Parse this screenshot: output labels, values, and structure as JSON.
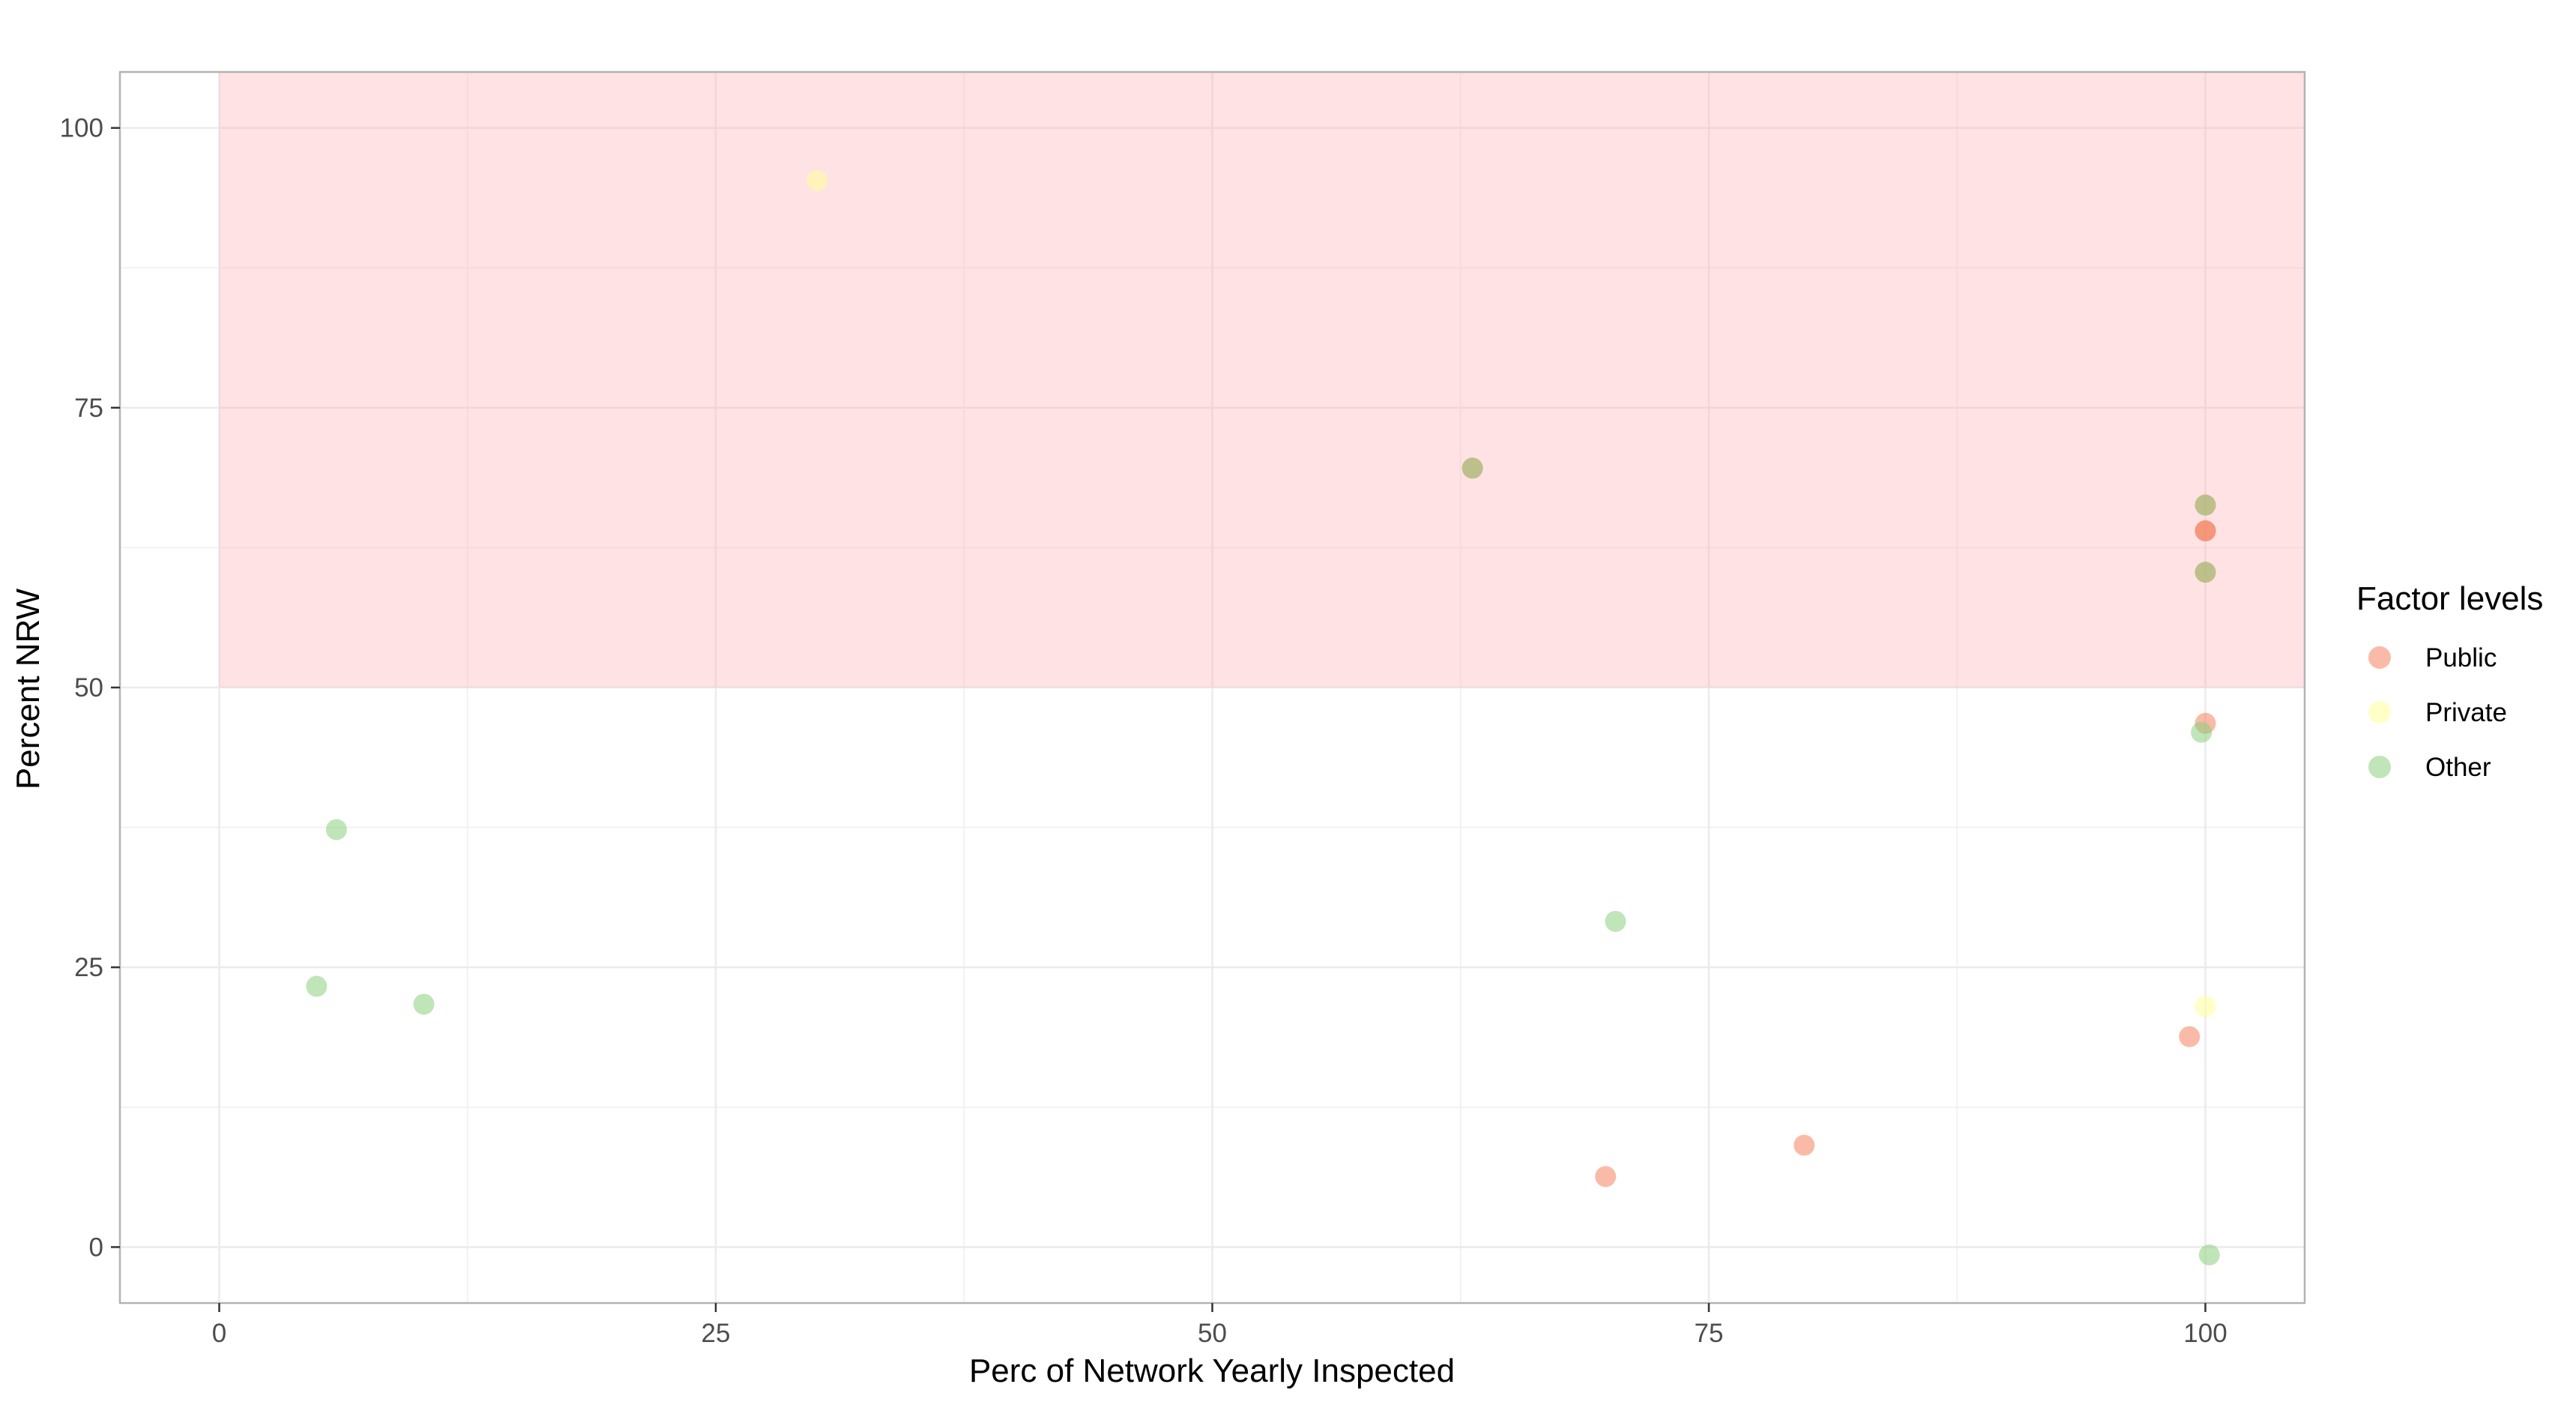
{
  "chart_data": {
    "type": "scatter",
    "title": "",
    "xlabel": "Perc of Network Yearly Inspected",
    "ylabel": "Percent NRW",
    "xlim": [
      -5,
      105
    ],
    "ylim": [
      -5,
      105
    ],
    "xticks": [
      0,
      25,
      50,
      75,
      100
    ],
    "yticks": [
      0,
      25,
      50,
      75,
      100
    ],
    "grid": true,
    "legend_position": "right",
    "legend_title": "Factor levels",
    "shaded_region": {
      "x": [
        0,
        105
      ],
      "y": [
        50,
        105
      ],
      "color": "#ffb3b8"
    },
    "series": [
      {
        "name": "Public",
        "color": "#f4845f",
        "points": [
          [
            100,
            64
          ],
          [
            100,
            64
          ],
          [
            100,
            46.8
          ],
          [
            99.2,
            18.8
          ],
          [
            79.8,
            9.1
          ],
          [
            69.8,
            6.3
          ],
          [
            63.1,
            69.6
          ],
          [
            100,
            66.3
          ],
          [
            100,
            60.3
          ]
        ]
      },
      {
        "name": "Private",
        "color": "#ffff99",
        "points": [
          [
            30.1,
            95.3
          ],
          [
            100,
            21.5
          ]
        ]
      },
      {
        "name": "Other",
        "color": "#8ccf7e",
        "points": [
          [
            63.1,
            69.6
          ],
          [
            100,
            66.3
          ],
          [
            100,
            60.3
          ],
          [
            99.8,
            46.0
          ],
          [
            5.9,
            37.3
          ],
          [
            4.9,
            23.3
          ],
          [
            10.3,
            21.7
          ],
          [
            70.3,
            29.1
          ],
          [
            100.2,
            -0.7
          ]
        ]
      }
    ]
  }
}
